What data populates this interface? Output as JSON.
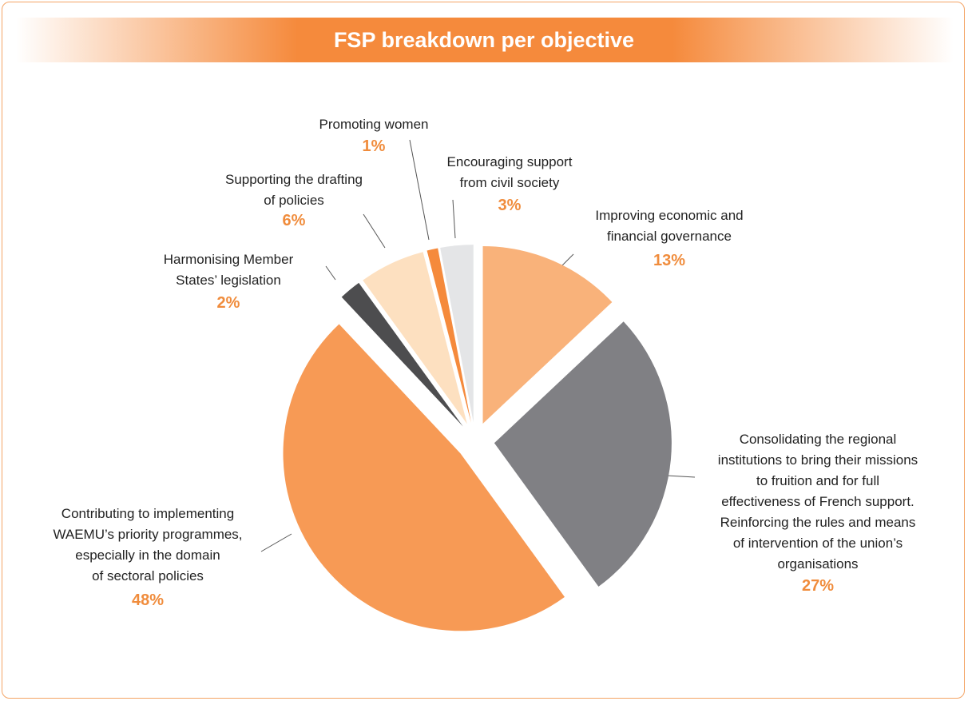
{
  "chart_data": {
    "type": "pie",
    "title": "FSP breakdown per objective",
    "categories": [
      "Improving economic and\nfinancial governance",
      "Consolidating the regional\ninstitutions to bring their missions\nto fruition and for full\neffectiveness of French support.\nReinforcing the rules and means\nof intervention of the union’s\norganisations",
      "Contributing to implementing\nWAEMU’s priority programmes,\nespecially in the domain\nof sectoral policies",
      "Harmonising Member\nStates’ legislation",
      "Supporting the drafting\nof policies",
      "Promoting women",
      "Encouraging support\nfrom civil society"
    ],
    "values": [
      13,
      27,
      48,
      2,
      6,
      1,
      3
    ],
    "value_labels": [
      "13%",
      "27%",
      "48%",
      "2%",
      "6%",
      "1%",
      "3%"
    ],
    "colors": [
      "#f9b27a",
      "#808084",
      "#f79a55",
      "#4d4d4f",
      "#fde0c0",
      "#f58a3c",
      "#e4e5e7"
    ]
  }
}
